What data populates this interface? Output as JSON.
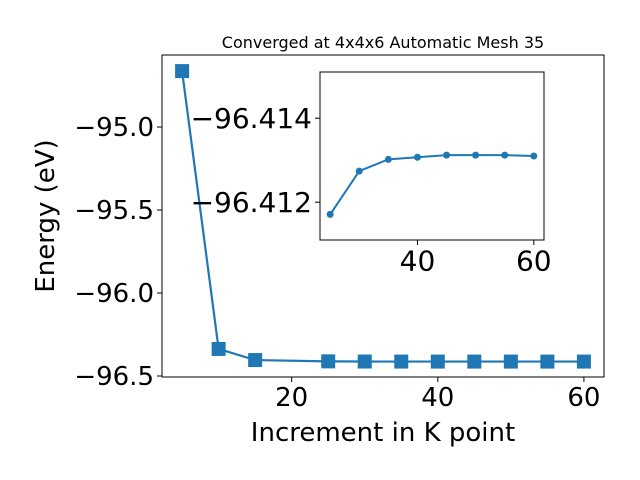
{
  "chart_data": [
    {
      "type": "line",
      "title": "Converged at 4x4x6 Automatic Mesh 35",
      "x_label": "Increment in K point",
      "y_label": "Energy (eV)",
      "x": [
        5,
        10,
        15,
        25,
        30,
        35,
        40,
        45,
        50,
        55,
        60
      ],
      "series": [
        {
          "color": "#1f77b4",
          "marker": "square",
          "values": [
            -94.663,
            -96.337,
            -96.404,
            -96.41171,
            -96.41274,
            -96.41302,
            -96.41307,
            -96.41312,
            -96.41312,
            -96.41312,
            -96.4131
          ]
        }
      ],
      "xlim": [
        2.25,
        62.75
      ],
      "ylim": [
        -96.506,
        -94.566
      ],
      "xticks": [
        20,
        40,
        60
      ],
      "yticks": [
        {
          "value": -95.0,
          "label": "−95.0"
        },
        {
          "value": -95.5,
          "label": "−95.5"
        },
        {
          "value": -96.0,
          "label": "−96.0"
        },
        {
          "value": -96.5,
          "label": "−96.5"
        }
      ]
    },
    {
      "type": "line",
      "x": [
        25,
        30,
        35,
        40,
        45,
        50,
        55,
        60
      ],
      "series": [
        {
          "color": "#1f77b4",
          "marker": "circle",
          "values": [
            -96.41171,
            -96.41274,
            -96.41302,
            -96.41307,
            -96.41312,
            -96.41312,
            -96.41312,
            -96.4131
          ]
        }
      ],
      "xlim": [
        23.25,
        61.75
      ],
      "ylim": [
        -96.4111,
        -96.4151
      ],
      "xticks": [
        40,
        60
      ],
      "yticks": [
        {
          "value": -96.414,
          "label": "−96.414"
        },
        {
          "value": -96.412,
          "label": "−96.412"
        }
      ]
    }
  ]
}
